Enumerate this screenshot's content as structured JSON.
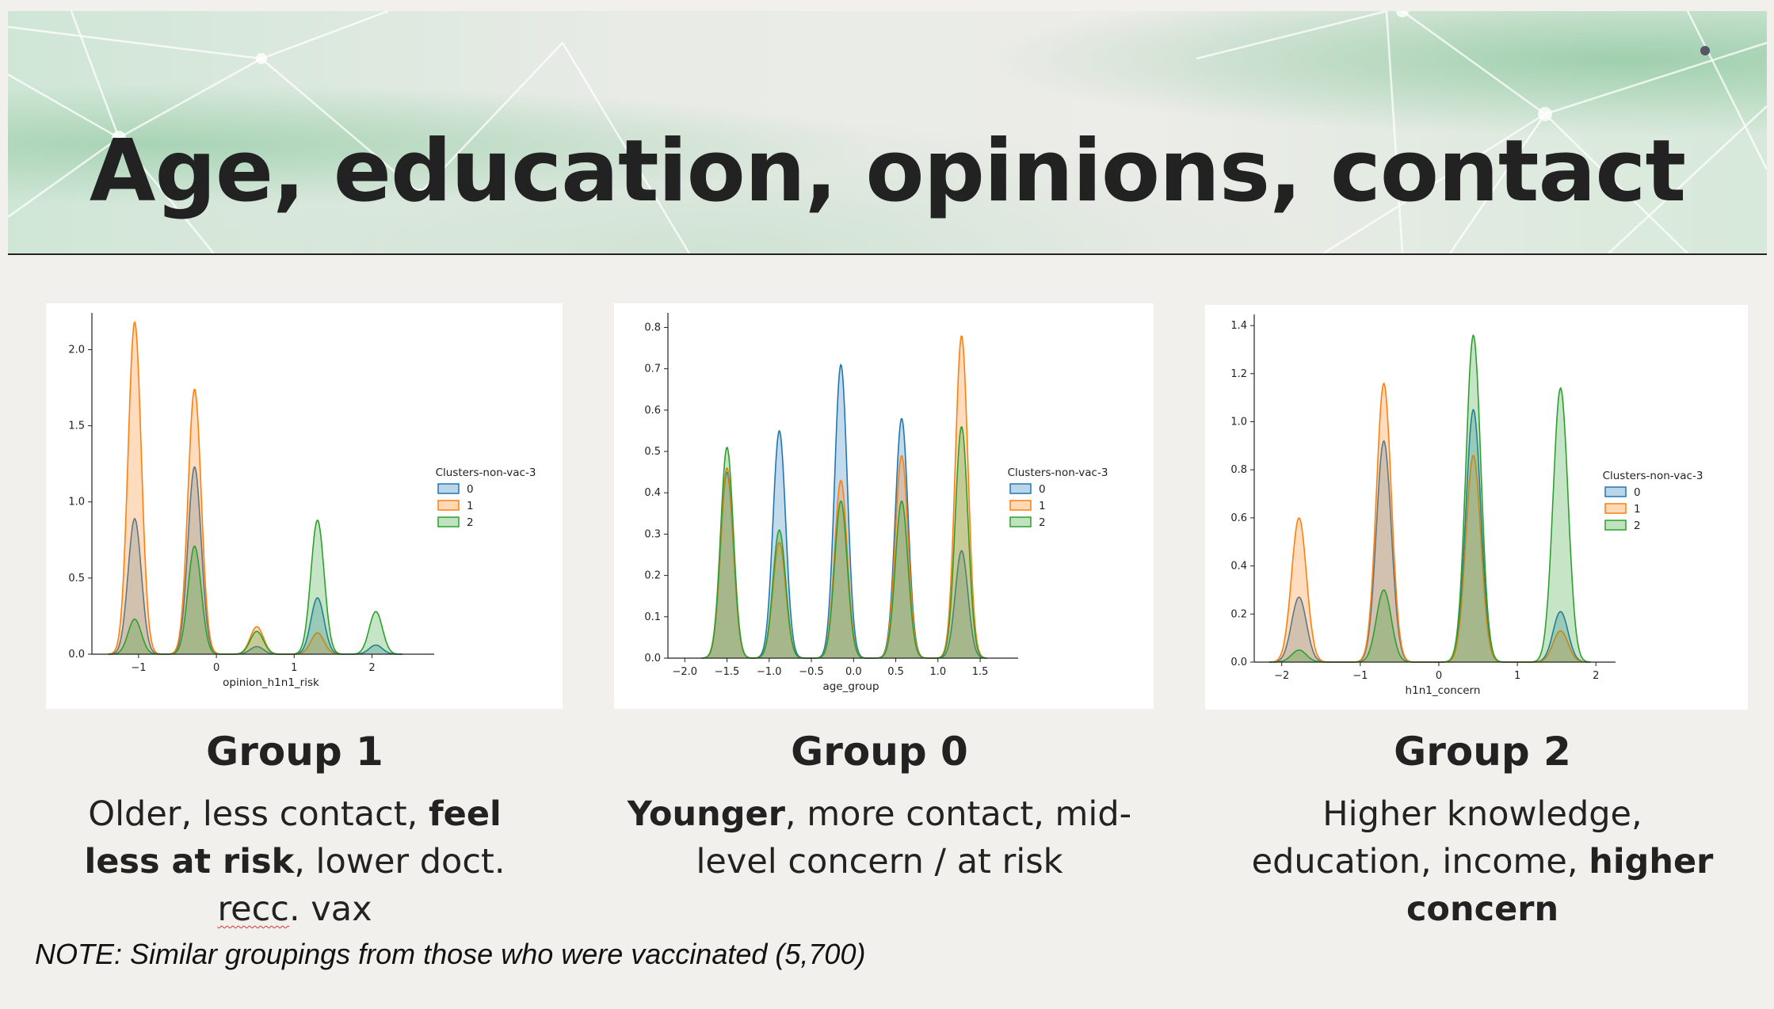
{
  "slide": {
    "title": "Age, education, opinions, contact",
    "note": "NOTE:  Similar groupings from those who were vaccinated (5,700)"
  },
  "colors": {
    "c0": "#1f77b4",
    "c1": "#ff7f0e",
    "c2": "#2ca02c"
  },
  "groups": [
    {
      "title": "Group 1",
      "desc_parts": [
        [
          "Older, less contact, ",
          false
        ],
        [
          "feel less at risk",
          true
        ],
        [
          ", lower doct. ",
          false
        ],
        [
          "recc",
          "squiggle"
        ],
        [
          ". vax",
          false
        ]
      ]
    },
    {
      "title": "Group 0",
      "desc_parts": [
        [
          "Younger",
          true
        ],
        [
          ", more contact, mid-level concern / at risk",
          false
        ]
      ]
    },
    {
      "title": "Group 2",
      "desc_parts": [
        [
          "Higher knowledge, education, income, ",
          false
        ],
        [
          "higher concern",
          true
        ]
      ]
    }
  ],
  "chart_data": [
    {
      "type": "area",
      "xlabel": "opinion_h1n1_risk",
      "legend_title": "Clusters-non-vac-3",
      "legend_position": "right",
      "xlim": [
        -1.6,
        2.8
      ],
      "ylim": [
        0,
        2.2
      ],
      "xticks": [
        -1,
        0,
        1,
        2
      ],
      "xtick_labels": [
        "−1",
        "0",
        "1",
        "2"
      ],
      "yticks": [
        0,
        0.5,
        1.0,
        1.5,
        2.0
      ],
      "ytick_labels": [
        "0.0",
        "0.5",
        "1.0",
        "1.5",
        "2.0"
      ],
      "series": [
        {
          "name": "0",
          "peaks": [
            [
              -1.05,
              0.89
            ],
            [
              -0.28,
              1.23
            ],
            [
              0.52,
              0.05
            ],
            [
              1.3,
              0.37
            ],
            [
              2.05,
              0.06
            ]
          ]
        },
        {
          "name": "1",
          "peaks": [
            [
              -1.05,
              2.18
            ],
            [
              -0.28,
              1.74
            ],
            [
              0.52,
              0.18
            ],
            [
              1.3,
              0.14
            ]
          ]
        },
        {
          "name": "2",
          "peaks": [
            [
              -1.05,
              0.23
            ],
            [
              -0.28,
              0.71
            ],
            [
              0.52,
              0.15
            ],
            [
              1.3,
              0.88
            ],
            [
              2.05,
              0.28
            ]
          ]
        }
      ]
    },
    {
      "type": "area",
      "xlabel": "age_group",
      "legend_title": "Clusters-non-vac-3",
      "legend_position": "right",
      "xlim": [
        -2.2,
        1.95
      ],
      "ylim": [
        0,
        0.82
      ],
      "xticks": [
        -2.0,
        -1.5,
        -1.0,
        -0.5,
        0.0,
        0.5,
        1.0,
        1.5
      ],
      "xtick_labels": [
        "−2.0",
        "−1.5",
        "−1.0",
        "−0.5",
        "0.0",
        "0.5",
        "1.0",
        "1.5"
      ],
      "yticks": [
        0,
        0.1,
        0.2,
        0.3,
        0.4,
        0.5,
        0.6,
        0.7,
        0.8
      ],
      "ytick_labels": [
        "0.0",
        "0.1",
        "0.2",
        "0.3",
        "0.4",
        "0.5",
        "0.6",
        "0.7",
        "0.8"
      ],
      "series": [
        {
          "name": "0",
          "peaks": [
            [
              -1.5,
              0.45
            ],
            [
              -0.88,
              0.55
            ],
            [
              -0.15,
              0.71
            ],
            [
              0.57,
              0.58
            ],
            [
              1.28,
              0.26
            ]
          ]
        },
        {
          "name": "1",
          "peaks": [
            [
              -1.5,
              0.46
            ],
            [
              -0.88,
              0.28
            ],
            [
              -0.15,
              0.43
            ],
            [
              0.57,
              0.49
            ],
            [
              1.28,
              0.78
            ]
          ]
        },
        {
          "name": "2",
          "peaks": [
            [
              -1.5,
              0.51
            ],
            [
              -0.88,
              0.31
            ],
            [
              -0.15,
              0.38
            ],
            [
              0.57,
              0.38
            ],
            [
              1.28,
              0.56
            ]
          ]
        }
      ]
    },
    {
      "type": "area",
      "xlabel": "h1n1_concern",
      "legend_title": "Clusters-non-vac-3",
      "legend_position": "right",
      "xlim": [
        -2.35,
        2.25
      ],
      "ylim": [
        0,
        1.42
      ],
      "xticks": [
        -2,
        -1,
        0,
        1,
        2
      ],
      "xtick_labels": [
        "−2",
        "−1",
        "0",
        "1",
        "2"
      ],
      "yticks": [
        0,
        0.2,
        0.4,
        0.6,
        0.8,
        1.0,
        1.2,
        1.4
      ],
      "ytick_labels": [
        "0.0",
        "0.2",
        "0.4",
        "0.6",
        "0.8",
        "1.0",
        "1.2",
        "1.4"
      ],
      "series": [
        {
          "name": "0",
          "peaks": [
            [
              -1.78,
              0.27
            ],
            [
              -0.7,
              0.92
            ],
            [
              0.44,
              1.05
            ],
            [
              1.55,
              0.21
            ]
          ]
        },
        {
          "name": "1",
          "peaks": [
            [
              -1.78,
              0.6
            ],
            [
              -0.7,
              1.16
            ],
            [
              0.44,
              0.86
            ],
            [
              1.55,
              0.13
            ]
          ]
        },
        {
          "name": "2",
          "peaks": [
            [
              -1.78,
              0.05
            ],
            [
              -0.7,
              0.3
            ],
            [
              0.44,
              1.36
            ],
            [
              1.55,
              1.14
            ]
          ]
        }
      ]
    }
  ]
}
